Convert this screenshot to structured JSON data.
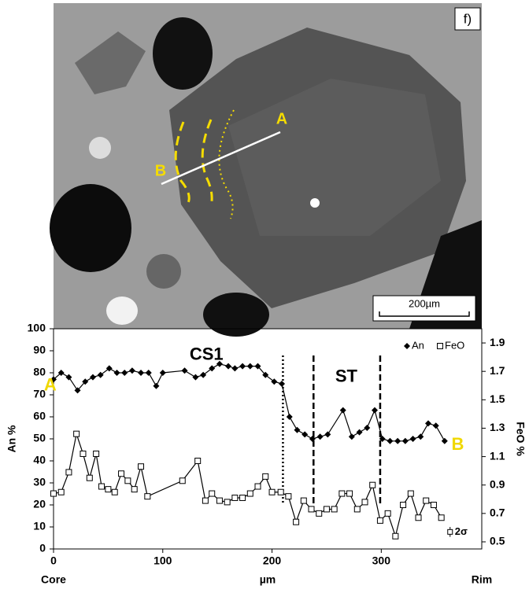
{
  "image": {
    "panel_label": "f)",
    "marker_a": "A",
    "marker_b": "B",
    "scale_bar": "200µm"
  },
  "chart_data": {
    "type": "line",
    "xlim": [
      0,
      392
    ],
    "xticks": [
      0,
      100,
      200,
      300
    ],
    "ylim": [
      0,
      100
    ],
    "yticks": [
      0,
      10,
      20,
      30,
      40,
      50,
      60,
      70,
      80,
      90,
      100
    ],
    "y2lim": [
      0.45,
      2.0
    ],
    "y2ticks": [
      0.5,
      0.7,
      0.9,
      1.1,
      1.3,
      1.5,
      1.7,
      1.9
    ],
    "x_label": "µm",
    "y_label": "An %",
    "y2_label": "FeO %",
    "x_end_labels": [
      "Core",
      "Rim"
    ],
    "legend": "top-right",
    "series": [
      {
        "name": "An",
        "color": "#000000",
        "marker": "diamond",
        "x": [
          0,
          7,
          14,
          22,
          29,
          36,
          43,
          51,
          58,
          65,
          72,
          80,
          87,
          94,
          100,
          120,
          130,
          137,
          145,
          152,
          160,
          166,
          173,
          180,
          187,
          194,
          202,
          209,
          216,
          223,
          230,
          237,
          244,
          251,
          265,
          273,
          280,
          287,
          294,
          301,
          308,
          315,
          322,
          329,
          336,
          343,
          350,
          358
        ],
        "values": [
          77,
          80,
          78,
          72,
          76,
          78,
          79,
          82,
          80,
          80,
          81,
          80,
          80,
          74,
          80,
          81,
          78,
          79,
          82,
          84,
          83,
          82,
          83,
          83,
          83,
          79,
          76,
          75,
          60,
          54,
          52,
          50,
          51,
          52,
          63,
          51,
          53,
          55,
          63,
          50,
          49,
          49,
          49,
          50,
          51,
          57,
          56,
          49
        ]
      },
      {
        "name": "FeO",
        "color": "#000000",
        "marker": "square",
        "axis": "y2",
        "x": [
          0,
          7,
          14,
          21,
          27,
          33,
          39,
          44,
          50,
          56,
          62,
          68,
          74,
          80,
          86,
          118,
          132,
          139,
          145,
          152,
          159,
          166,
          173,
          180,
          187,
          194,
          200,
          208,
          215,
          222,
          229,
          236,
          243,
          250,
          257,
          264,
          271,
          278,
          285,
          292,
          299,
          306,
          313,
          320,
          327,
          334,
          341,
          348,
          355
        ],
        "values": [
          0.84,
          0.85,
          0.99,
          1.26,
          1.12,
          0.95,
          1.12,
          0.89,
          0.87,
          0.85,
          0.98,
          0.93,
          0.87,
          1.03,
          0.82,
          0.93,
          1.07,
          0.79,
          0.84,
          0.79,
          0.78,
          0.81,
          0.81,
          0.84,
          0.89,
          0.96,
          0.85,
          0.85,
          0.82,
          0.64,
          0.79,
          0.73,
          0.7,
          0.73,
          0.73,
          0.84,
          0.84,
          0.73,
          0.78,
          0.9,
          0.65,
          0.7,
          0.54,
          0.76,
          0.84,
          0.67,
          0.79,
          0.76,
          0.67
        ]
      }
    ],
    "vlines": [
      {
        "x": 210,
        "style": "dotted"
      },
      {
        "x": 238,
        "style": "dashed"
      },
      {
        "x": 299,
        "style": "dashed"
      }
    ],
    "annotations": [
      {
        "text": "CS1",
        "x": 140,
        "y": 88,
        "color": "#000000"
      },
      {
        "text": "ST",
        "x": 268,
        "y": 78,
        "color": "#000000"
      },
      {
        "text": "A",
        "x": -3,
        "y": 74,
        "color": "#f0d800"
      },
      {
        "text": "B",
        "x": 370,
        "y": 47,
        "color": "#f0d800"
      }
    ],
    "error_bar": {
      "x": 363,
      "y": 0.57,
      "error": 0.035,
      "label": "2σ"
    }
  }
}
